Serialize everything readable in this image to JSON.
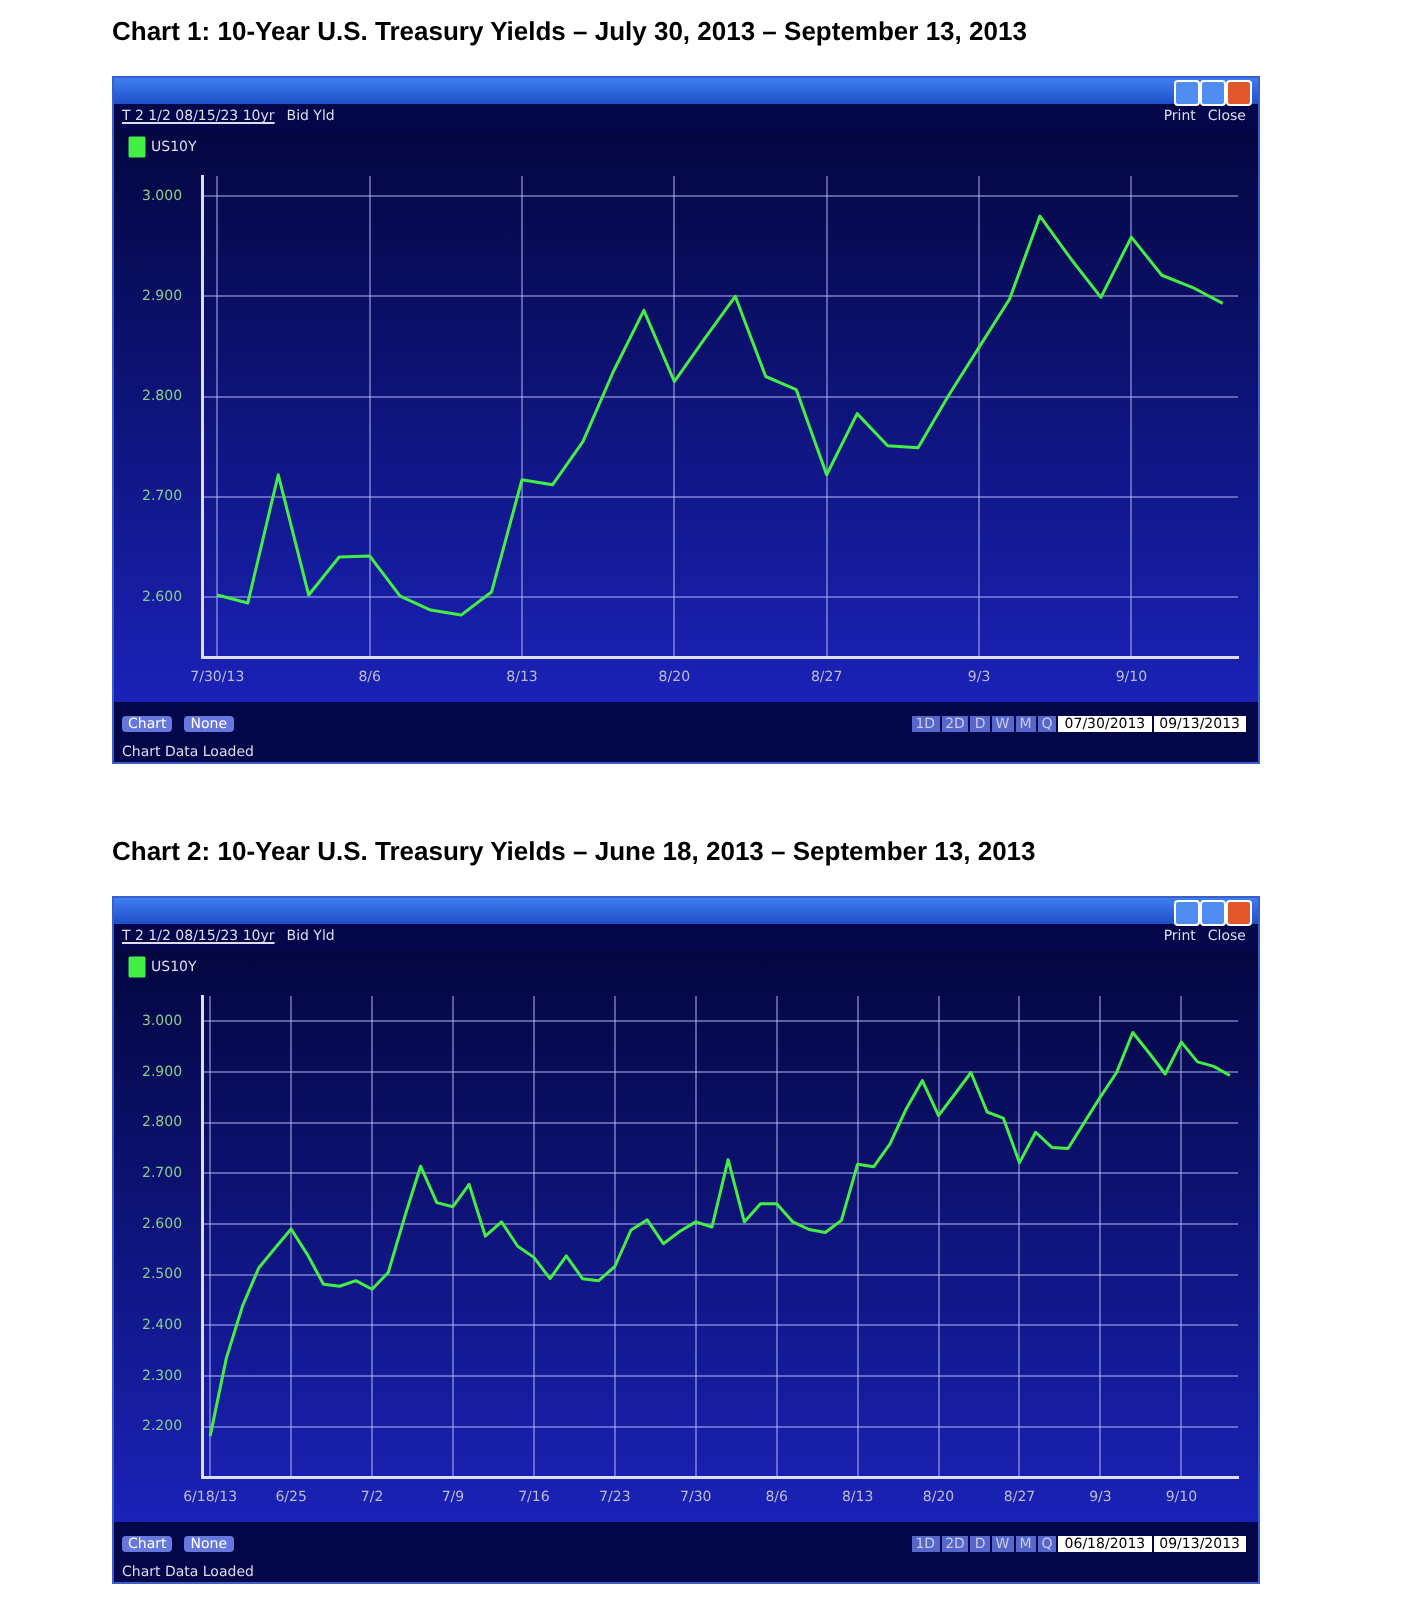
{
  "chart_data": [
    {
      "type": "line",
      "title": "Chart 1: 10-Year U.S. Treasury Yields – July 30, 2013 – September 13, 2013",
      "categories": [
        "7/30/13",
        null,
        null,
        null,
        null,
        "8/6",
        null,
        null,
        null,
        null,
        "8/13",
        null,
        null,
        null,
        null,
        "8/20",
        null,
        null,
        null,
        null,
        "8/27",
        null,
        null,
        null,
        null,
        "9/3",
        null,
        null,
        null,
        null,
        "9/10",
        null,
        null,
        null
      ],
      "series": [
        {
          "name": "US10Y",
          "color": "#44ee44",
          "values": [
            2.602,
            2.594,
            2.722,
            2.602,
            2.64,
            2.641,
            2.601,
            2.587,
            2.582,
            2.605,
            2.717,
            2.712,
            2.755,
            2.825,
            2.886,
            2.815,
            2.858,
            2.9,
            2.82,
            2.807,
            2.722,
            2.783,
            2.751,
            2.749,
            2.801,
            2.849,
            2.897,
            2.98,
            2.938,
            2.899,
            2.959,
            2.921,
            2.909,
            2.893
          ]
        }
      ],
      "ylim": [
        2.54,
        3.02
      ],
      "yticks": [
        {
          "value": 2.6,
          "label": "2.600"
        },
        {
          "value": 2.7,
          "label": "2.700"
        },
        {
          "value": 2.8,
          "label": "2.800"
        },
        {
          "value": 2.9,
          "label": "2.900"
        },
        {
          "value": 3.0,
          "label": "3.000"
        }
      ],
      "grid": true,
      "legend": "top left",
      "marker": "none",
      "annotations": [
        "T 2 1/2 08/15/23 10yr",
        "Bid Yld",
        "Print",
        "Close",
        "Chart",
        "None",
        "1D",
        "2D",
        "D",
        "W",
        "M",
        "Q",
        "07/30/2013",
        "09/13/2013",
        "Chart Data Loaded"
      ]
    },
    {
      "type": "line",
      "title": "Chart 2: 10-Year U.S. Treasury Yields – June 18, 2013 – September 13, 2013",
      "categories": [
        "6/18/13",
        null,
        null,
        null,
        null,
        "6/25",
        null,
        null,
        null,
        null,
        "7/2",
        null,
        null,
        null,
        null,
        "7/9",
        null,
        null,
        null,
        null,
        "7/16",
        null,
        null,
        null,
        null,
        "7/23",
        null,
        null,
        null,
        null,
        "7/30",
        null,
        null,
        null,
        null,
        "8/6",
        null,
        null,
        null,
        null,
        "8/13",
        null,
        null,
        null,
        null,
        "8/20",
        null,
        null,
        null,
        null,
        "8/27",
        null,
        null,
        null,
        null,
        "9/3",
        null,
        null,
        null,
        null,
        "9/10",
        null,
        null,
        null
      ],
      "series": [
        {
          "name": "US10Y",
          "color": "#44ee44",
          "values": [
            2.181,
            2.335,
            2.438,
            2.513,
            2.552,
            2.59,
            2.54,
            2.481,
            2.477,
            2.488,
            2.471,
            2.504,
            2.612,
            2.714,
            2.642,
            2.634,
            2.678,
            2.576,
            2.604,
            2.556,
            2.534,
            2.492,
            2.537,
            2.492,
            2.488,
            2.516,
            2.588,
            2.608,
            2.561,
            2.585,
            2.604,
            2.594,
            2.727,
            2.604,
            2.64,
            2.64,
            2.604,
            2.589,
            2.583,
            2.607,
            2.718,
            2.713,
            2.758,
            2.827,
            2.883,
            2.814,
            2.856,
            2.899,
            2.821,
            2.809,
            2.721,
            2.781,
            2.751,
            2.749,
            2.8,
            2.851,
            2.899,
            2.978,
            2.938,
            2.896,
            2.959,
            2.92,
            2.911,
            2.893
          ]
        }
      ],
      "ylim": [
        2.1,
        3.05
      ],
      "yticks": [
        {
          "value": 2.2,
          "label": "2.200"
        },
        {
          "value": 2.3,
          "label": "2.300"
        },
        {
          "value": 2.4,
          "label": "2.400"
        },
        {
          "value": 2.5,
          "label": "2.500"
        },
        {
          "value": 2.6,
          "label": "2.600"
        },
        {
          "value": 2.7,
          "label": "2.700"
        },
        {
          "value": 2.8,
          "label": "2.800"
        },
        {
          "value": 2.9,
          "label": "2.900"
        },
        {
          "value": 3.0,
          "label": "3.000"
        }
      ],
      "grid": true,
      "legend": "top left",
      "marker": "none",
      "annotations": [
        "T 2 1/2 08/15/23 10yr",
        "Bid Yld",
        "Print",
        "Close",
        "Chart",
        "None",
        "1D",
        "2D",
        "D",
        "W",
        "M",
        "Q",
        "06/18/2013",
        "09/13/2013",
        "Chart Data Loaded"
      ]
    }
  ]
}
